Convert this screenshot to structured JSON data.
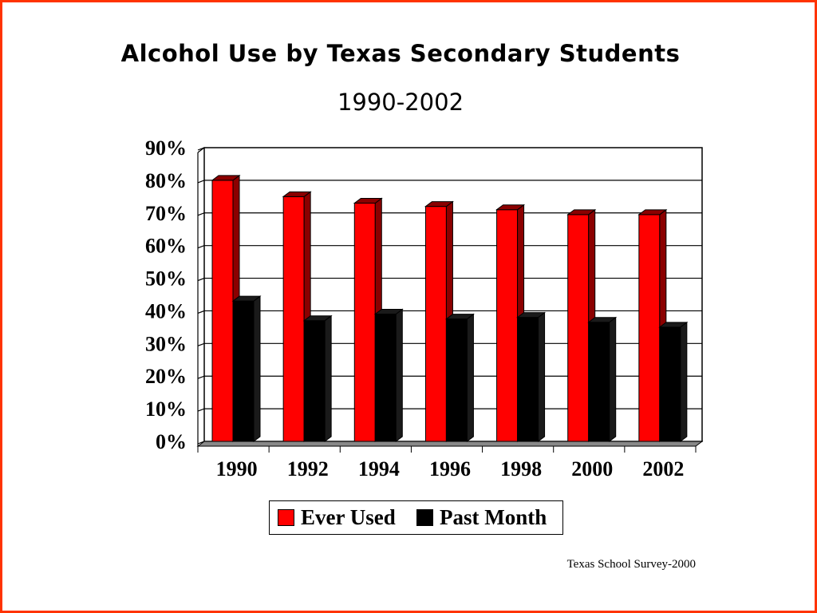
{
  "chart_data": {
    "type": "bar",
    "title": "Alcohol Use by Texas Secondary Students",
    "subtitle": "1990-2002",
    "categories": [
      "1990",
      "1992",
      "1994",
      "1996",
      "1998",
      "2000",
      "2002"
    ],
    "series": [
      {
        "name": "Ever Used",
        "values": [
          80,
          75,
          73,
          72,
          71,
          69.5,
          69.5
        ],
        "color": "#ff0000",
        "dark": "#8b0000"
      },
      {
        "name": "Past Month",
        "values": [
          43,
          37,
          39,
          37.5,
          38,
          36.5,
          35
        ],
        "color": "#000000",
        "dark": "#1a1a1a"
      }
    ],
    "yticks": [
      "0%",
      "10%",
      "20%",
      "30%",
      "40%",
      "50%",
      "60%",
      "70%",
      "80%",
      "90%"
    ],
    "ylim": [
      0,
      90
    ],
    "grid": true,
    "legend": "bottom",
    "source": "Texas School Survey-2000"
  }
}
